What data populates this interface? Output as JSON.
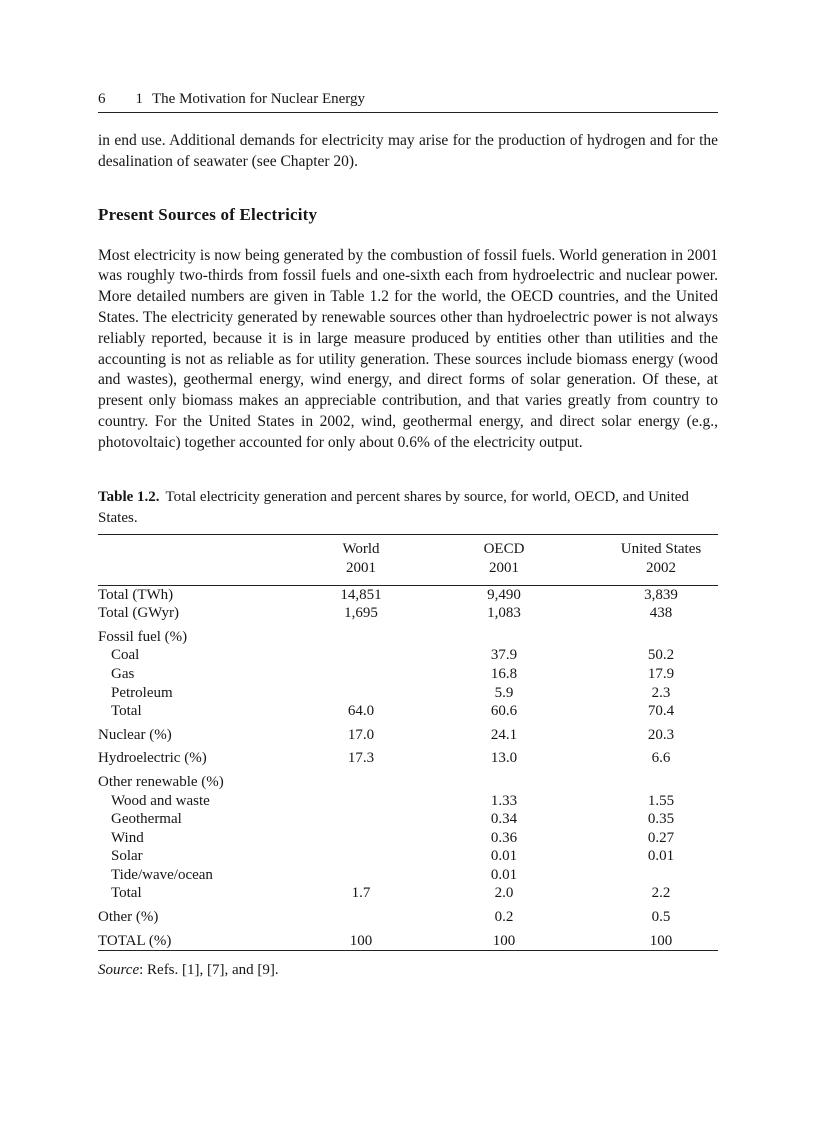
{
  "header": {
    "page_number": "6",
    "chapter_number": "1",
    "chapter_title": "The Motivation for Nuclear Energy"
  },
  "intro_paragraph": "in end use. Additional demands for electricity may arise for the production of hydrogen and for the desalination of seawater (see Chapter 20).",
  "section": {
    "heading": "Present Sources of Electricity",
    "paragraph": "Most electricity is now being generated by the combustion of fossil fuels. World generation in 2001 was roughly two-thirds from fossil fuels and one-sixth each from hydroelectric and nuclear power. More detailed numbers are given in Table 1.2 for the world, the OECD countries, and the United States. The electricity generated by renewable sources other than hydroelectric power is not always reliably reported, because it is in large measure produced by entities other than utilities and the accounting is not as reliable as for utility generation. These sources include biomass energy (wood and wastes), geothermal energy, wind energy, and direct forms of solar generation. Of these, at present only biomass makes an appreciable contribution, and that varies greatly from country to country. For the United States in 2002, wind, geothermal energy, and direct solar energy (e.g., photovoltaic) together accounted for only about 0.6% of the electricity output."
  },
  "table": {
    "label": "Table 1.2.",
    "caption": "Total electricity generation and percent shares by source, for world, OECD, and United States.",
    "columns": [
      {
        "line1": "World",
        "line2": "2001"
      },
      {
        "line1": "OECD",
        "line2": "2001"
      },
      {
        "line1": "United States",
        "line2": "2002"
      }
    ],
    "rows": [
      {
        "label": "Total (TWh)",
        "indent": 0,
        "space_above": false,
        "values": [
          "14,851",
          "9,490",
          "3,839"
        ]
      },
      {
        "label": "Total (GWyr)",
        "indent": 0,
        "space_above": false,
        "values": [
          "1,695",
          "1,083",
          "438"
        ]
      },
      {
        "label": "Fossil fuel (%)",
        "indent": 0,
        "space_above": true,
        "values": [
          "",
          "",
          ""
        ]
      },
      {
        "label": "Coal",
        "indent": 1,
        "space_above": false,
        "values": [
          "",
          "37.9",
          "50.2"
        ]
      },
      {
        "label": "Gas",
        "indent": 1,
        "space_above": false,
        "values": [
          "",
          "16.8",
          "17.9"
        ]
      },
      {
        "label": "Petroleum",
        "indent": 1,
        "space_above": false,
        "values": [
          "",
          "5.9",
          "2.3"
        ]
      },
      {
        "label": "Total",
        "indent": 1,
        "space_above": false,
        "values": [
          "64.0",
          "60.6",
          "70.4"
        ]
      },
      {
        "label": "Nuclear (%)",
        "indent": 0,
        "space_above": true,
        "values": [
          "17.0",
          "24.1",
          "20.3"
        ]
      },
      {
        "label": "Hydroelectric (%)",
        "indent": 0,
        "space_above": true,
        "values": [
          "17.3",
          "13.0",
          "6.6"
        ]
      },
      {
        "label": "Other renewable (%)",
        "indent": 0,
        "space_above": true,
        "values": [
          "",
          "",
          ""
        ]
      },
      {
        "label": "Wood and waste",
        "indent": 1,
        "space_above": false,
        "values": [
          "",
          "1.33",
          "1.55"
        ]
      },
      {
        "label": "Geothermal",
        "indent": 1,
        "space_above": false,
        "values": [
          "",
          "0.34",
          "0.35"
        ]
      },
      {
        "label": "Wind",
        "indent": 1,
        "space_above": false,
        "values": [
          "",
          "0.36",
          "0.27"
        ]
      },
      {
        "label": "Solar",
        "indent": 1,
        "space_above": false,
        "values": [
          "",
          "0.01",
          "0.01"
        ]
      },
      {
        "label": "Tide/wave/ocean",
        "indent": 1,
        "space_above": false,
        "values": [
          "",
          "0.01",
          ""
        ]
      },
      {
        "label": "Total",
        "indent": 1,
        "space_above": false,
        "values": [
          "1.7",
          "2.0",
          "2.2"
        ]
      },
      {
        "label": "Other (%)",
        "indent": 0,
        "space_above": true,
        "values": [
          "",
          "0.2",
          "0.5"
        ]
      },
      {
        "label": "TOTAL (%)",
        "indent": 0,
        "space_above": true,
        "values": [
          "100",
          "100",
          "100"
        ]
      }
    ],
    "source_label": "Source",
    "source_rest": ": Refs. [1], [7], and [9]."
  }
}
